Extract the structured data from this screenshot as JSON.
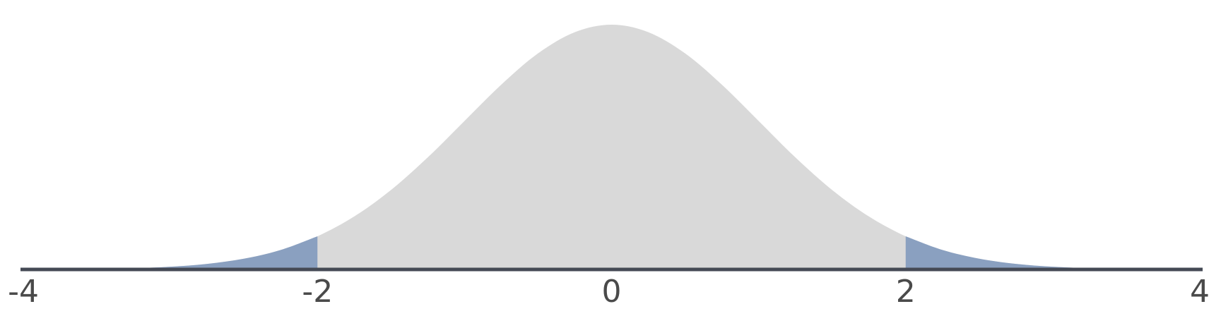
{
  "chart_data": {
    "type": "area",
    "x": [
      -4,
      -3.75,
      -3.5,
      -3.25,
      -3,
      -2.75,
      -2.5,
      -2.25,
      -2,
      -1.75,
      -1.5,
      -1.25,
      -1,
      -0.75,
      -0.5,
      -0.25,
      0,
      0.25,
      0.5,
      0.75,
      1,
      1.25,
      1.5,
      1.75,
      2,
      2.25,
      2.5,
      2.75,
      3,
      3.25,
      3.5,
      3.75,
      4
    ],
    "values": [
      0.0001,
      0.0004,
      0.0009,
      0.002,
      0.0044,
      0.0091,
      0.0175,
      0.0317,
      0.054,
      0.0863,
      0.1295,
      0.1826,
      0.242,
      0.3011,
      0.3521,
      0.3867,
      0.3989,
      0.3867,
      0.3521,
      0.3011,
      0.242,
      0.1826,
      0.1295,
      0.0863,
      0.054,
      0.0317,
      0.0175,
      0.0091,
      0.0044,
      0.002,
      0.0009,
      0.0004,
      0.0001
    ],
    "color": "#d9d9d9",
    "shaded_ranges": [
      [
        -4,
        -2
      ],
      [
        2,
        4
      ]
    ],
    "shade_color": "#8aa0c0",
    "axis_color": "#454a55",
    "xlim": [
      -4,
      4
    ],
    "xticks": [
      -4,
      -2,
      0,
      2,
      4
    ],
    "ylim": [
      0,
      0.4
    ]
  }
}
